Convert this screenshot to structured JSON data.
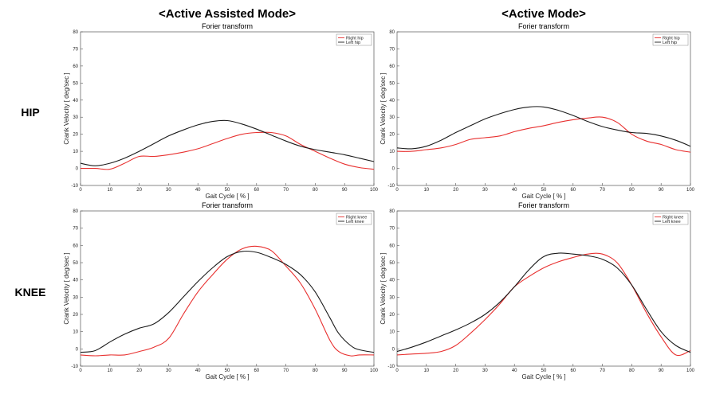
{
  "mode_titles": [
    "<Active Assisted Mode>",
    "<Active Mode>"
  ],
  "row_labels": [
    "HIP",
    "KNEE"
  ],
  "colors": {
    "right": "#e8302f",
    "left": "#1a1a1a"
  },
  "chart_data": [
    {
      "type": "line",
      "title": "Forier transform",
      "xlabel": "Gait Cycle [ % ]",
      "ylabel": "Crank Velocity [ deg/sec ]",
      "xlim": [
        0,
        100
      ],
      "ylim": [
        -10,
        80
      ],
      "xticks": [
        0,
        10,
        20,
        30,
        40,
        50,
        60,
        70,
        80,
        90,
        100
      ],
      "yticks": [
        -10,
        0,
        10,
        20,
        30,
        40,
        50,
        60,
        70,
        80
      ],
      "grid": false,
      "legend": "top-right",
      "x": [
        0,
        5,
        10,
        15,
        20,
        25,
        30,
        35,
        40,
        45,
        50,
        55,
        60,
        65,
        70,
        75,
        80,
        85,
        90,
        95,
        100
      ],
      "series": [
        {
          "name": "Right hip",
          "color": "#e8302f",
          "values": [
            0,
            0,
            -0.5,
            3,
            7,
            7,
            8,
            9.5,
            11.5,
            14.5,
            17.5,
            20,
            21,
            21,
            19,
            14,
            10,
            6,
            2.5,
            0.5,
            -0.5
          ]
        },
        {
          "name": "Left hip",
          "color": "#1a1a1a",
          "values": [
            3,
            1.5,
            3,
            6,
            10,
            14.5,
            19,
            22.5,
            25.5,
            27.5,
            28,
            26,
            23,
            19.5,
            16,
            13,
            11,
            9.5,
            8,
            6,
            4
          ]
        }
      ]
    },
    {
      "type": "line",
      "title": "Forier transform",
      "xlabel": "Gait Cycle [ % ]",
      "ylabel": "Crank Velocity [ deg/sec ]",
      "xlim": [
        0,
        100
      ],
      "ylim": [
        -10,
        80
      ],
      "xticks": [
        0,
        10,
        20,
        30,
        40,
        50,
        60,
        70,
        80,
        90,
        100
      ],
      "yticks": [
        -10,
        0,
        10,
        20,
        30,
        40,
        50,
        60,
        70,
        80
      ],
      "grid": false,
      "legend": "top-right",
      "x": [
        0,
        5,
        10,
        15,
        20,
        25,
        30,
        35,
        40,
        45,
        50,
        55,
        60,
        65,
        70,
        75,
        80,
        85,
        90,
        95,
        100
      ],
      "series": [
        {
          "name": "Right hip",
          "color": "#e8302f",
          "values": [
            10,
            10,
            11,
            12,
            14,
            17,
            18,
            19,
            21.5,
            23.5,
            25,
            27,
            28.5,
            29.5,
            30,
            27,
            20,
            16,
            14,
            11,
            9.5
          ]
        },
        {
          "name": "Left hip",
          "color": "#1a1a1a",
          "values": [
            12,
            11.5,
            13,
            16.5,
            21,
            25,
            29,
            32,
            34.5,
            36,
            36,
            34,
            31,
            27.5,
            24.5,
            22.5,
            21,
            20.5,
            19,
            16.5,
            13
          ]
        }
      ]
    },
    {
      "type": "line",
      "title": "Forier transform",
      "xlabel": "Gait Cycle [ % ]",
      "ylabel": "Crank Velocity [ deg/sec ]",
      "xlim": [
        0,
        100
      ],
      "ylim": [
        -10,
        80
      ],
      "xticks": [
        0,
        10,
        20,
        30,
        40,
        50,
        60,
        70,
        80,
        90,
        100
      ],
      "yticks": [
        -10,
        0,
        10,
        20,
        30,
        40,
        50,
        60,
        70,
        80
      ],
      "grid": false,
      "legend": "top-right",
      "x": [
        0,
        5,
        10,
        15,
        20,
        25,
        30,
        35,
        40,
        45,
        50,
        55,
        60,
        65,
        70,
        75,
        80,
        85,
        88,
        92,
        95,
        100
      ],
      "series": [
        {
          "name": "Right knee",
          "color": "#e8302f",
          "values": [
            -3.5,
            -4,
            -3.5,
            -3.5,
            -1.5,
            1,
            6,
            20,
            33,
            43,
            52,
            58,
            59.5,
            57,
            48,
            38,
            23,
            5,
            -1.5,
            -4,
            -3.5,
            -3.5
          ]
        },
        {
          "name": "Left knee",
          "color": "#1a1a1a",
          "values": [
            -2,
            -1,
            4,
            8.5,
            12,
            14.5,
            21,
            30,
            39,
            47,
            53.5,
            56.5,
            56,
            53,
            49,
            43,
            33,
            18,
            9,
            2,
            -0.5,
            -2
          ]
        }
      ]
    },
    {
      "type": "line",
      "title": "Forier transform",
      "xlabel": "Gait Cycle [ % ]",
      "ylabel": "Crank Velocity [ deg/sec ]",
      "xlim": [
        0,
        100
      ],
      "ylim": [
        -10,
        80
      ],
      "xticks": [
        0,
        10,
        20,
        30,
        40,
        50,
        60,
        70,
        80,
        90,
        100
      ],
      "yticks": [
        -10,
        0,
        10,
        20,
        30,
        40,
        50,
        60,
        70,
        80
      ],
      "grid": false,
      "legend": "top-right",
      "x": [
        0,
        5,
        10,
        15,
        20,
        25,
        30,
        35,
        40,
        45,
        50,
        55,
        60,
        65,
        70,
        75,
        80,
        85,
        90,
        95,
        100
      ],
      "series": [
        {
          "name": "Right knee",
          "color": "#e8302f",
          "values": [
            -3.5,
            -3,
            -2.5,
            -1.5,
            2,
            9,
            17,
            26,
            36,
            42,
            47,
            50.5,
            53,
            55,
            55,
            50,
            37,
            21,
            7,
            -3.5,
            -1
          ]
        },
        {
          "name": "Left knee",
          "color": "#1a1a1a",
          "values": [
            -1.5,
            1,
            4,
            7.5,
            11,
            15,
            20,
            27,
            36,
            46,
            53.5,
            55.5,
            55,
            54,
            52,
            47,
            37,
            23,
            10,
            2,
            -2
          ]
        }
      ]
    }
  ]
}
